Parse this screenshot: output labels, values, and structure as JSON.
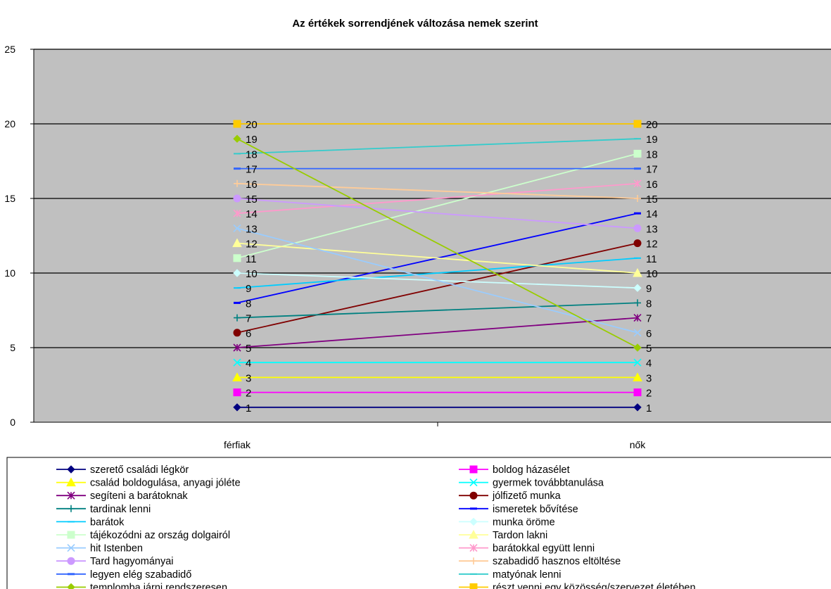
{
  "chart_data": {
    "type": "line",
    "title": "Az értékek sorrendjének változása nemek szerint",
    "categories": [
      "férfiak",
      "nők"
    ],
    "ylim": [
      0,
      25
    ],
    "yticks": [
      "0",
      "5",
      "10",
      "15",
      "20",
      "25"
    ],
    "grid": true,
    "legend_position": "bottom",
    "series": [
      {
        "name": "szerető családi légkör",
        "values": [
          1,
          1
        ],
        "color": "#000080",
        "marker": "diamond",
        "labels": [
          "1",
          "1"
        ]
      },
      {
        "name": "boldog házasélet",
        "values": [
          2,
          2
        ],
        "color": "#ff00ff",
        "marker": "square",
        "labels": [
          "2",
          "2"
        ]
      },
      {
        "name": "család boldogulása, anyagi jóléte",
        "values": [
          3,
          3
        ],
        "color": "#ffff00",
        "marker": "triangle",
        "labels": [
          "3",
          "3"
        ]
      },
      {
        "name": "gyermek továbbtanulása",
        "values": [
          4,
          4
        ],
        "color": "#00ffff",
        "marker": "x",
        "labels": [
          "4",
          "4"
        ]
      },
      {
        "name": "segíteni a barátoknak",
        "values": [
          5,
          7
        ],
        "color": "#800080",
        "marker": "star",
        "labels": [
          "5",
          "7"
        ]
      },
      {
        "name": "jólfizető munka",
        "values": [
          6,
          12
        ],
        "color": "#800000",
        "marker": "circle",
        "labels": [
          "6",
          "12"
        ]
      },
      {
        "name": "tardinak lenni",
        "values": [
          7,
          8
        ],
        "color": "#008080",
        "marker": "plus",
        "labels": [
          "7",
          "8"
        ]
      },
      {
        "name": "ismeretek bővítése",
        "values": [
          8,
          14
        ],
        "color": "#0000ff",
        "marker": "dash",
        "labels": [
          "8",
          "14"
        ]
      },
      {
        "name": "barátok",
        "values": [
          9,
          11
        ],
        "color": "#00ccff",
        "marker": "line",
        "labels": [
          "9",
          "11"
        ]
      },
      {
        "name": "munka öröme",
        "values": [
          10,
          9
        ],
        "color": "#ccffff",
        "marker": "diamond",
        "labels": [
          "10",
          "9"
        ]
      },
      {
        "name": "tájékozódni az ország dolgairól",
        "values": [
          11,
          18
        ],
        "color": "#ccffcc",
        "marker": "square",
        "labels": [
          "11",
          "18"
        ]
      },
      {
        "name": "Tardon lakni",
        "values": [
          12,
          10
        ],
        "color": "#ffff99",
        "marker": "triangle",
        "labels": [
          "12",
          "10"
        ]
      },
      {
        "name": "hit Istenben",
        "values": [
          13,
          6
        ],
        "color": "#99ccff",
        "marker": "x",
        "labels": [
          "13",
          "6"
        ]
      },
      {
        "name": "barátokkal együtt lenni",
        "values": [
          14,
          16
        ],
        "color": "#ff99cc",
        "marker": "star",
        "labels": [
          "14",
          "16"
        ]
      },
      {
        "name": "Tard hagyományai",
        "values": [
          15,
          13
        ],
        "color": "#cc99ff",
        "marker": "circle",
        "labels": [
          "15",
          "13"
        ]
      },
      {
        "name": "szabadidő hasznos eltöltése",
        "values": [
          16,
          15
        ],
        "color": "#ffcc99",
        "marker": "plus",
        "labels": [
          "16",
          "15"
        ]
      },
      {
        "name": "legyen elég szabadidő",
        "values": [
          17,
          17
        ],
        "color": "#3366ff",
        "marker": "dash",
        "labels": [
          "17",
          "17"
        ]
      },
      {
        "name": "matyónak lenni",
        "values": [
          18,
          19
        ],
        "color": "#33cccc",
        "marker": "line",
        "labels": [
          "18",
          "19"
        ]
      },
      {
        "name": "templomba járni rendszeresen",
        "values": [
          19,
          5
        ],
        "color": "#99cc00",
        "marker": "diamond",
        "labels": [
          "19",
          "5"
        ]
      },
      {
        "name": "részt venni egy közösség/szervezet életében",
        "values": [
          20,
          20
        ],
        "color": "#ffcc00",
        "marker": "square",
        "labels": [
          "20",
          "20"
        ]
      }
    ]
  },
  "colors": {
    "plot_background": "#c0c0c0",
    "gridline": "#000000"
  }
}
